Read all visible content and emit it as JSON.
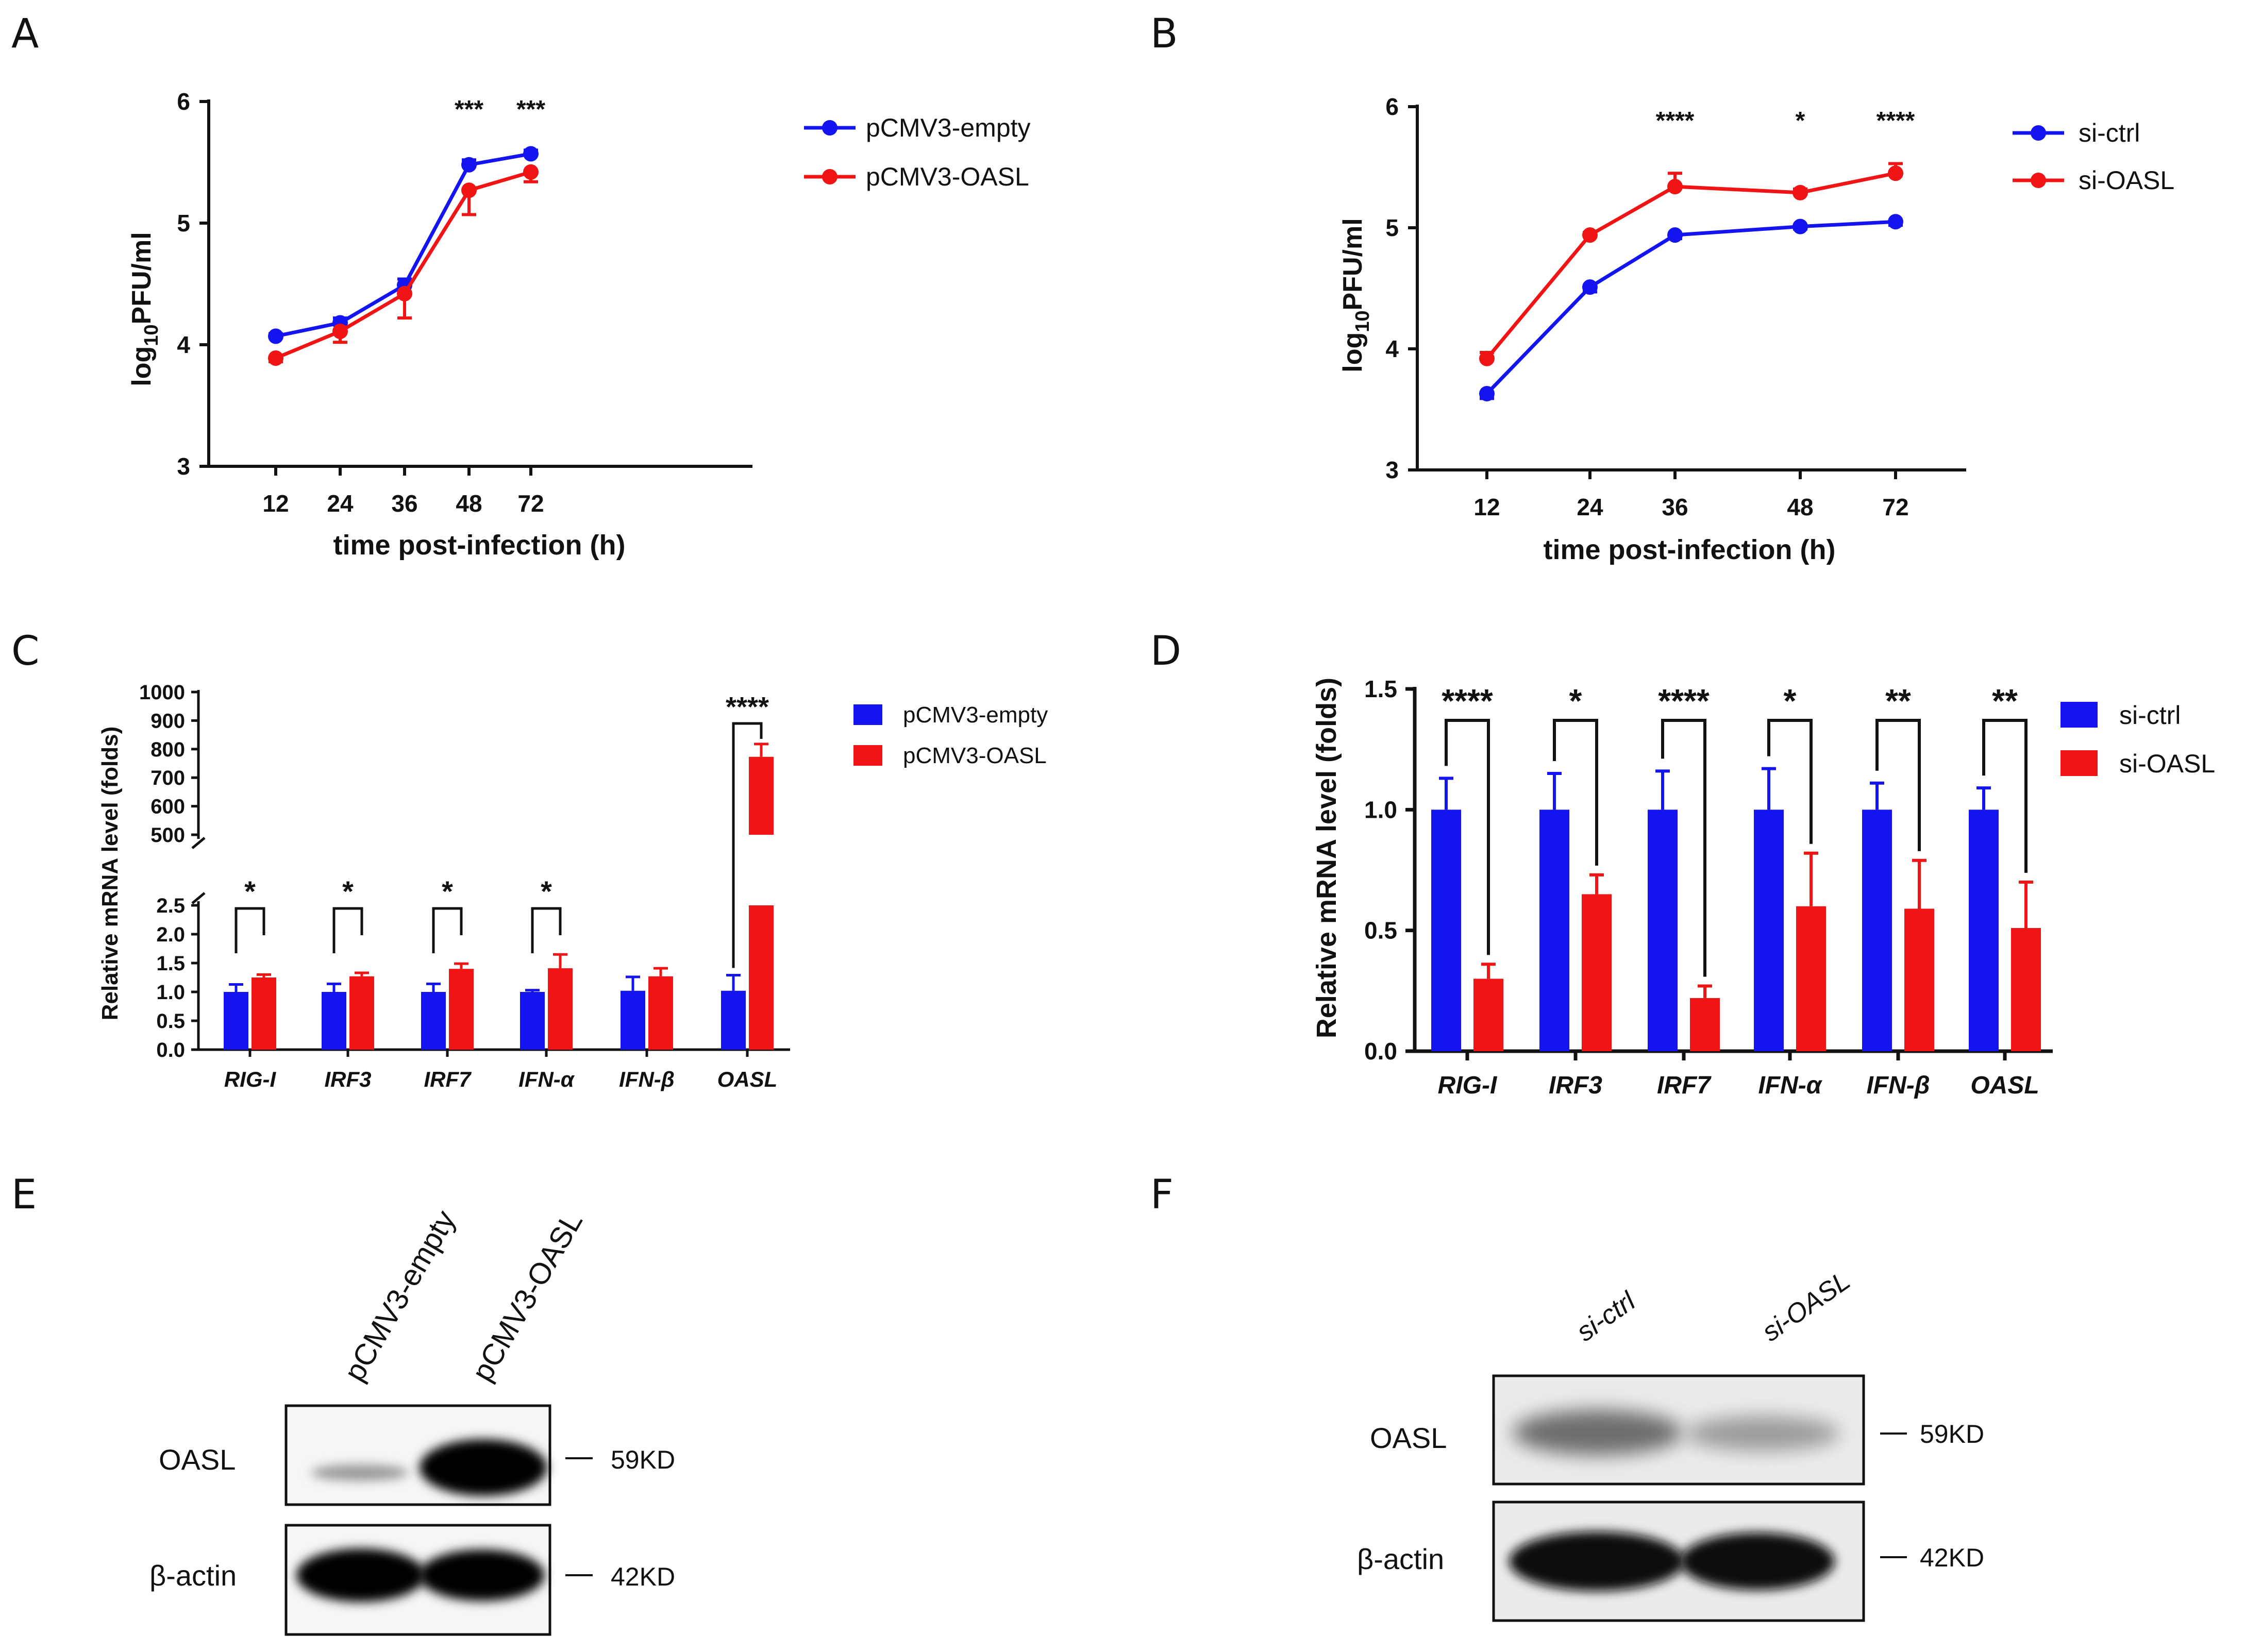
{
  "panels": {
    "A": "A",
    "B": "B",
    "C": "C",
    "D": "D",
    "E": "E",
    "F": "F"
  },
  "colors": {
    "blue": "#1414f0",
    "red": "#f01414"
  },
  "chart_data": [
    {
      "id": "A",
      "type": "line",
      "xlabel": "time post-infection (h)",
      "ylabel_main": "log",
      "ylabel_sub": "10",
      "ylabel_rest": "PFU/ml",
      "categories": [
        "12",
        "24",
        "36",
        "48",
        "72"
      ],
      "ylim": [
        3,
        6
      ],
      "yticks": [
        "3",
        "4",
        "5",
        "6"
      ],
      "series": [
        {
          "name": "pCMV3-empty",
          "color": "#1414f0",
          "values": [
            4.07,
            4.18,
            4.49,
            5.48,
            5.57
          ],
          "errors": [
            0.02,
            0.04,
            0.05,
            0.04,
            0.03
          ]
        },
        {
          "name": "pCMV3-OASL",
          "color": "#f01414",
          "values": [
            3.89,
            4.11,
            4.42,
            5.27,
            5.42
          ],
          "errors": [
            0.03,
            0.09,
            0.2,
            0.2,
            0.08
          ]
        }
      ],
      "significance": [
        "",
        "",
        "",
        "***",
        "***"
      ]
    },
    {
      "id": "B",
      "type": "line",
      "xlabel": "time post-infection (h)",
      "ylabel_main": "log",
      "ylabel_sub": "10",
      "ylabel_rest": "PFU/ml",
      "categories": [
        "12",
        "24",
        "36",
        "48",
        "72"
      ],
      "ylim": [
        3,
        6
      ],
      "yticks": [
        "3",
        "4",
        "5",
        "6"
      ],
      "series": [
        {
          "name": "si-ctrl",
          "color": "#1414f0",
          "values": [
            3.63,
            4.51,
            4.94,
            5.01,
            5.05
          ],
          "errors": [
            0.04,
            0.04,
            0.03,
            0.02,
            0.03
          ]
        },
        {
          "name": "si-OASL",
          "color": "#f01414",
          "values": [
            3.92,
            4.94,
            5.34,
            5.29,
            5.45
          ],
          "errors": [
            0.05,
            0.02,
            0.11,
            0.03,
            0.08
          ]
        }
      ],
      "significance": [
        "",
        "",
        "****",
        "*",
        "****"
      ]
    },
    {
      "id": "C",
      "type": "bar",
      "ylabel": "Relative mRNA level (folds)",
      "categories": [
        "RIG-I",
        "IRF3",
        "IRF7",
        "IFN-α",
        "IFN-β",
        "OASL"
      ],
      "lower_ylim": [
        0,
        2.5
      ],
      "lower_yticks": [
        "0.0",
        "0.5",
        "1.0",
        "1.5",
        "2.0",
        "2.5"
      ],
      "upper_ylim": [
        500,
        1000
      ],
      "upper_yticks": [
        "500",
        "600",
        "700",
        "800",
        "900",
        "1000"
      ],
      "series": [
        {
          "name": "pCMV3-empty",
          "color": "#1414f0",
          "values": [
            1.0,
            1.0,
            1.0,
            1.0,
            1.02,
            1.02
          ],
          "errors": [
            0.13,
            0.14,
            0.14,
            0.03,
            0.24,
            0.27
          ]
        },
        {
          "name": "pCMV3-OASL",
          "color": "#f01414",
          "values": [
            1.25,
            1.27,
            1.4,
            1.41,
            1.27,
            773
          ],
          "errors": [
            0.05,
            0.06,
            0.09,
            0.24,
            0.14,
            45
          ]
        }
      ],
      "significance": [
        "*",
        "*",
        "*",
        "*",
        "",
        "****"
      ]
    },
    {
      "id": "D",
      "type": "bar",
      "ylabel": "Relative mRNA level (folds)",
      "categories": [
        "RIG-I",
        "IRF3",
        "IRF7",
        "IFN-α",
        "IFN-β",
        "OASL"
      ],
      "ylim": [
        0,
        1.5
      ],
      "yticks": [
        "0.0",
        "0.5",
        "1.0",
        "1.5"
      ],
      "series": [
        {
          "name": "si-ctrl",
          "color": "#1414f0",
          "values": [
            1.0,
            1.0,
            1.0,
            1.0,
            1.0,
            1.0
          ],
          "errors": [
            0.13,
            0.15,
            0.16,
            0.17,
            0.11,
            0.09
          ]
        },
        {
          "name": "si-OASL",
          "color": "#f01414",
          "values": [
            0.3,
            0.65,
            0.22,
            0.6,
            0.59,
            0.51
          ],
          "errors": [
            0.06,
            0.08,
            0.05,
            0.22,
            0.2,
            0.19
          ]
        }
      ],
      "significance": [
        "****",
        "*",
        "****",
        "*",
        "**",
        "**"
      ]
    }
  ],
  "blots": {
    "E": {
      "lanes": [
        "pCMV3-empty",
        "pCMV3-OASL"
      ],
      "rows": [
        {
          "label": "OASL",
          "marker": "59KD"
        },
        {
          "label": "β-actin",
          "marker": "42KD"
        }
      ]
    },
    "F": {
      "lanes": [
        "si-ctrl",
        "si-OASL"
      ],
      "rows": [
        {
          "label": "OASL",
          "marker": "59KD"
        },
        {
          "label": "β-actin",
          "marker": "42KD"
        }
      ]
    }
  }
}
